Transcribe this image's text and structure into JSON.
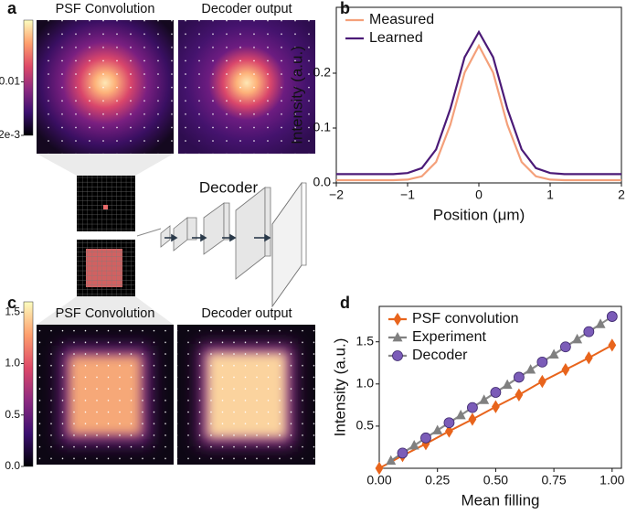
{
  "figure": {
    "panel_labels": [
      "a",
      "b",
      "c",
      "d"
    ],
    "image_panels": [
      {
        "titles": [
          "PSF Convolution",
          "Decoder output"
        ],
        "shape": "spot",
        "log": true,
        "clim": [
          0.002,
          0.064
        ],
        "colorbar_ticks": [
          {
            "value": 0.01,
            "label": "0.01"
          },
          {
            "value": 0.002,
            "label": "2e-3"
          }
        ]
      },
      {
        "titles": [
          "PSF Convolution",
          "Decoder output"
        ],
        "shape": "square",
        "log": false,
        "clim": [
          0,
          1.6
        ],
        "colorbar_ticks": [
          {
            "value": 0,
            "label": "0.0"
          },
          0.5,
          {
            "value": 1,
            "label": "1.0"
          },
          1.5
        ]
      }
    ],
    "diagram_label": "Decoder"
  },
  "chart_data": [
    {
      "type": "line",
      "xlabel": "Position (μm)",
      "ylabel": "Intensity (a.u.)",
      "x": [
        -2,
        -1.8,
        -1.6,
        -1.4,
        -1.2,
        -1,
        -0.8,
        -0.6,
        -0.4,
        -0.2,
        0,
        0.2,
        0.4,
        0.6,
        0.8,
        1,
        1.2,
        1.4,
        1.6,
        1.8,
        2
      ],
      "series": [
        {
          "name": "Measured",
          "color": "#f4a07a",
          "values": [
            0.005,
            0.005,
            0.005,
            0.005,
            0.005,
            0.006,
            0.012,
            0.038,
            0.106,
            0.201,
            0.25,
            0.201,
            0.106,
            0.038,
            0.012,
            0.006,
            0.005,
            0.005,
            0.005,
            0.005,
            0.005
          ]
        },
        {
          "name": "Learned",
          "color": "#4b1a77",
          "values": [
            0.016,
            0.016,
            0.016,
            0.016,
            0.016,
            0.018,
            0.027,
            0.061,
            0.135,
            0.229,
            0.275,
            0.229,
            0.135,
            0.061,
            0.027,
            0.018,
            0.016,
            0.016,
            0.016,
            0.016,
            0.016
          ]
        }
      ],
      "xlim": [
        -2,
        2
      ],
      "ylim": [
        0,
        0.32
      ],
      "xticks": [
        {
          "value": -2,
          "label": "−2"
        },
        {
          "value": -1,
          "label": "−1"
        },
        0,
        1,
        2
      ],
      "yticks": [
        {
          "value": 0,
          "label": "0.0"
        },
        0.1,
        0.2
      ],
      "legend": "upper left"
    },
    {
      "type": "line",
      "xlabel": "Mean filling",
      "ylabel": "Intensity (a.u.)",
      "series": [
        {
          "name": "PSF convolution",
          "color": "#e8641c",
          "marker": "diamond",
          "x": [
            0,
            0.1,
            0.2,
            0.3,
            0.4,
            0.5,
            0.6,
            0.7,
            0.8,
            0.9,
            1.0
          ],
          "values": [
            0,
            0.15,
            0.29,
            0.44,
            0.58,
            0.73,
            0.87,
            1.03,
            1.17,
            1.31,
            1.46
          ]
        },
        {
          "name": "Experiment",
          "color": "#808080",
          "marker": "triangle",
          "x": [
            0.05,
            0.15,
            0.25,
            0.35,
            0.45,
            0.55,
            0.65,
            0.75,
            0.85,
            0.95
          ],
          "values": [
            0.09,
            0.27,
            0.45,
            0.63,
            0.81,
            0.99,
            1.17,
            1.35,
            1.53,
            1.71
          ]
        },
        {
          "name": "Decoder",
          "color": "#7b5cb8",
          "marker": "circle",
          "x": [
            0.1,
            0.2,
            0.3,
            0.4,
            0.5,
            0.6,
            0.7,
            0.8,
            0.9,
            1.0
          ],
          "values": [
            0.18,
            0.36,
            0.54,
            0.72,
            0.9,
            1.08,
            1.26,
            1.44,
            1.62,
            1.8
          ]
        }
      ],
      "xlim": [
        0,
        1.04
      ],
      "ylim": [
        0,
        1.92
      ],
      "xticks": [
        {
          "value": 0,
          "label": "0.00"
        },
        {
          "value": 0.25,
          "label": "0.25"
        },
        {
          "value": 0.5,
          "label": "0.50"
        },
        {
          "value": 0.75,
          "label": "0.75"
        },
        {
          "value": 1,
          "label": "1.00"
        }
      ],
      "yticks": [
        0.5,
        {
          "value": 1,
          "label": "1.0"
        },
        1.5
      ],
      "legend": "upper left"
    }
  ]
}
